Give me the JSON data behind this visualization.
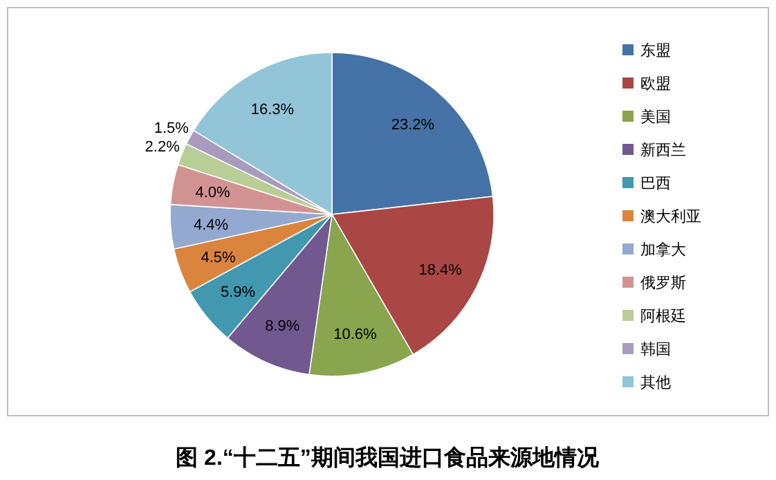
{
  "chart_data": {
    "type": "pie",
    "title": "图 2.“十二五”期间我国进口食品来源地情况",
    "categories": [
      "东盟",
      "欧盟",
      "美国",
      "新西兰",
      "巴西",
      "澳大利亚",
      "加拿大",
      "俄罗斯",
      "阿根廷",
      "韩国",
      "其他"
    ],
    "values": [
      23.2,
      18.4,
      10.6,
      8.9,
      5.9,
      4.5,
      4.4,
      4.0,
      2.2,
      1.5,
      16.3
    ],
    "value_labels": [
      "23.2%",
      "18.4%",
      "10.6%",
      "8.9%",
      "5.9%",
      "4.5%",
      "4.4%",
      "4.0%",
      "2.2%",
      "1.5%",
      "16.3%"
    ],
    "colors": [
      "#4572a7",
      "#aa4643",
      "#89a54e",
      "#71588f",
      "#4198af",
      "#db843d",
      "#93a9cf",
      "#d19392",
      "#b9cd96",
      "#a99bbd",
      "#92c5d8"
    ],
    "legend": "right"
  }
}
